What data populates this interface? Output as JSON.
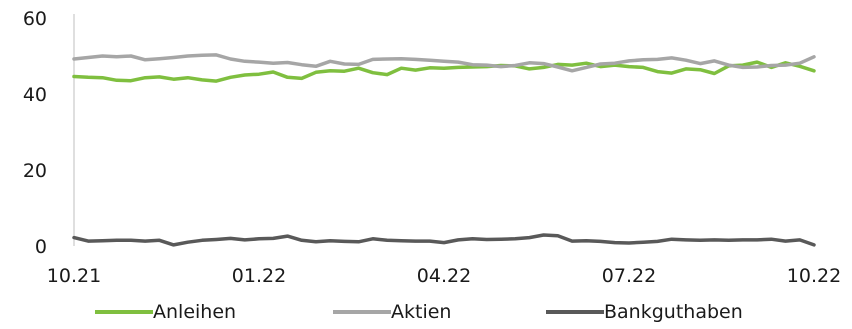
{
  "chart_data": {
    "type": "line",
    "title": "",
    "xlabel": "",
    "ylabel": "",
    "ylim": [
      0,
      60
    ],
    "yticks": [
      "0",
      "20",
      "40",
      "60"
    ],
    "xticks": [
      "10.21",
      "01.22",
      "04.22",
      "07.22",
      "10.22"
    ],
    "grid": false,
    "legend_position": "bottom",
    "series": [
      {
        "name": "Anleihen",
        "color": "#7fbf3f",
        "values": [
          44.6,
          44.4,
          44.3,
          43.6,
          43.5,
          44.3,
          44.5,
          43.9,
          44.3,
          43.7,
          43.4,
          44.4,
          45.0,
          45.2,
          45.8,
          44.4,
          44.1,
          45.7,
          46.1,
          46.0,
          46.8,
          45.6,
          45.1,
          46.8,
          46.3,
          46.9,
          46.8,
          47.0,
          47.1,
          47.2,
          47.5,
          47.4,
          46.6,
          47.0,
          47.8,
          47.6,
          48.1,
          47.2,
          47.6,
          47.2,
          47.0,
          45.9,
          45.5,
          46.6,
          46.4,
          45.4,
          47.4,
          47.6,
          48.4,
          47.0,
          48.2,
          47.3,
          46.1
        ]
      },
      {
        "name": "Aktien",
        "color": "#a6a6a6",
        "values": [
          49.2,
          49.6,
          50.0,
          49.8,
          50.0,
          49.0,
          49.3,
          49.6,
          50.0,
          50.2,
          50.3,
          49.2,
          48.6,
          48.4,
          48.1,
          48.3,
          47.7,
          47.3,
          48.6,
          47.9,
          47.8,
          49.1,
          49.2,
          49.3,
          49.1,
          48.9,
          48.6,
          48.4,
          47.7,
          47.6,
          47.2,
          47.5,
          48.2,
          48.0,
          47.1,
          46.1,
          47.0,
          47.9,
          48.1,
          48.7,
          49.0,
          49.1,
          49.5,
          48.9,
          48.0,
          48.7,
          47.6,
          47.0,
          47.1,
          47.5,
          47.6,
          48.1,
          49.8
        ]
      },
      {
        "name": "Bankguthaben",
        "color": "#595959",
        "values": [
          2.2,
          1.3,
          1.4,
          1.5,
          1.5,
          1.3,
          1.5,
          0.3,
          1.0,
          1.5,
          1.7,
          2.0,
          1.6,
          1.9,
          2.0,
          2.6,
          1.5,
          1.1,
          1.4,
          1.2,
          1.1,
          1.9,
          1.5,
          1.4,
          1.3,
          1.3,
          0.9,
          1.6,
          1.9,
          1.7,
          1.8,
          1.9,
          2.2,
          2.9,
          2.7,
          1.3,
          1.4,
          1.2,
          0.9,
          0.8,
          1.0,
          1.2,
          1.8,
          1.6,
          1.5,
          1.6,
          1.5,
          1.6,
          1.6,
          1.8,
          1.3,
          1.6,
          0.3
        ]
      }
    ]
  }
}
